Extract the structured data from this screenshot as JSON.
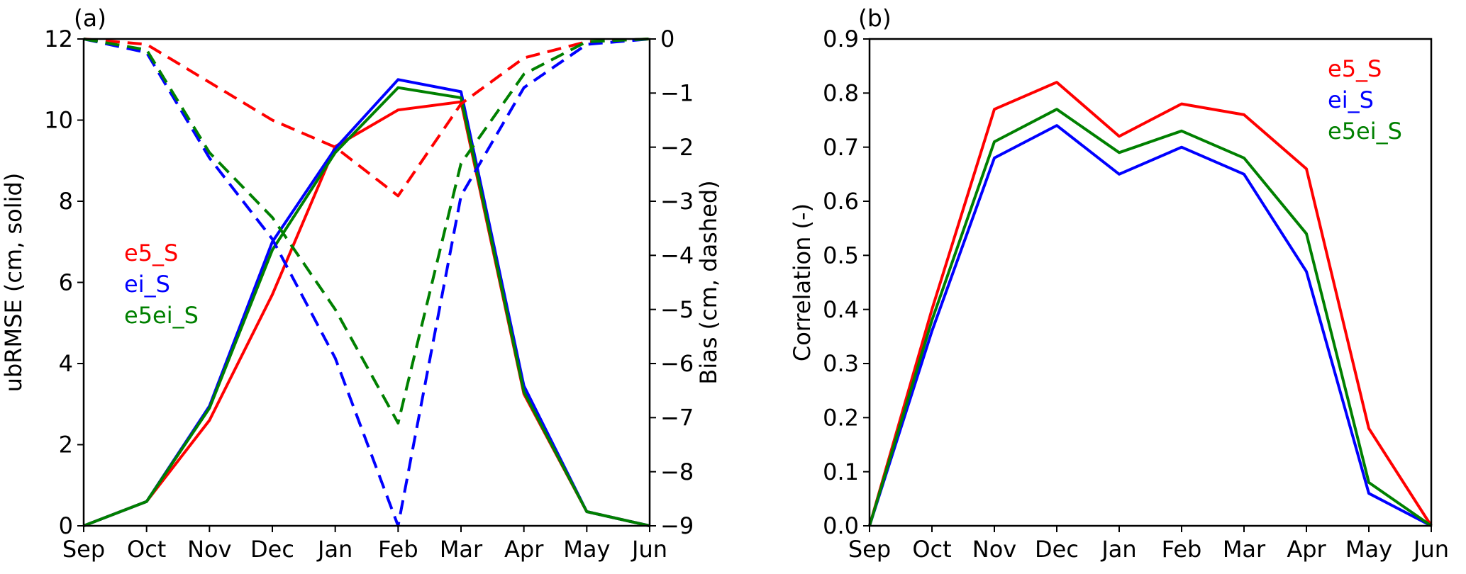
{
  "figure": {
    "background": "#ffffff",
    "text_color": "#000000"
  },
  "chart_data": [
    {
      "id": "a",
      "type": "line",
      "panel_label": "(a)",
      "x_categories": [
        "Sep",
        "Oct",
        "Nov",
        "Dec",
        "Jan",
        "Feb",
        "Mar",
        "Apr",
        "May",
        "Jun"
      ],
      "axes": {
        "left": {
          "label": "ubRMSE (cm, solid)",
          "min": 0,
          "max": 12,
          "tick_values": [
            0,
            2,
            4,
            6,
            8,
            10,
            12
          ],
          "ticks": [
            "0",
            "2",
            "4",
            "6",
            "8",
            "10",
            "12"
          ]
        },
        "right": {
          "label": "Bias (cm, dashed)",
          "min": -9,
          "max": 0,
          "tick_values": [
            0,
            -1,
            -2,
            -3,
            -4,
            -5,
            -6,
            -7,
            -8,
            -9
          ],
          "ticks": [
            "0",
            "−1",
            "−2",
            "−3",
            "−4",
            "−5",
            "−6",
            "−7",
            "−8",
            "−9"
          ]
        }
      },
      "legend": {
        "position": "middle-left",
        "items": [
          {
            "text": "e5_S",
            "color": "#ff0000"
          },
          {
            "text": "ei_S",
            "color": "#0000ff"
          },
          {
            "text": "e5ei_S",
            "color": "#008000"
          }
        ]
      },
      "series": [
        {
          "name": "e5_S-ubRMSE",
          "color": "#ff0000",
          "style": "solid",
          "axis": "left",
          "values": [
            0,
            0.6,
            2.6,
            5.7,
            9.35,
            10.25,
            10.45,
            3.25,
            0.35,
            0
          ]
        },
        {
          "name": "ei_S-ubRMSE",
          "color": "#0000ff",
          "style": "solid",
          "axis": "left",
          "values": [
            0,
            0.6,
            2.95,
            7.0,
            9.3,
            11.0,
            10.7,
            3.45,
            0.35,
            0
          ]
        },
        {
          "name": "e5ei_S-ubRMSE",
          "color": "#008000",
          "style": "solid",
          "axis": "left",
          "values": [
            0,
            0.6,
            2.9,
            6.8,
            9.2,
            10.8,
            10.55,
            3.3,
            0.35,
            0
          ]
        },
        {
          "name": "e5_S-bias",
          "color": "#ff0000",
          "style": "dashed",
          "axis": "right",
          "values": [
            0,
            -0.1,
            -0.8,
            -1.5,
            -2.0,
            -2.9,
            -1.2,
            -0.35,
            -0.05,
            0
          ]
        },
        {
          "name": "ei_S-bias",
          "color": "#0000ff",
          "style": "dashed",
          "axis": "right",
          "values": [
            0,
            -0.25,
            -2.2,
            -3.7,
            -5.9,
            -9.0,
            -2.9,
            -0.9,
            -0.1,
            0
          ]
        },
        {
          "name": "e5ei_S-bias",
          "color": "#008000",
          "style": "dashed",
          "axis": "right",
          "values": [
            0,
            -0.2,
            -2.1,
            -3.3,
            -5.0,
            -7.1,
            -2.3,
            -0.65,
            -0.05,
            0
          ]
        }
      ]
    },
    {
      "id": "b",
      "type": "line",
      "panel_label": "(b)",
      "x_categories": [
        "Sep",
        "Oct",
        "Nov",
        "Dec",
        "Jan",
        "Feb",
        "Mar",
        "Apr",
        "May",
        "Jun"
      ],
      "axes": {
        "left": {
          "label": "Correlation (-)",
          "min": 0,
          "max": 0.9,
          "tick_values": [
            0,
            0.1,
            0.2,
            0.3,
            0.4,
            0.5,
            0.6,
            0.7,
            0.8,
            0.9
          ],
          "ticks": [
            "0.0",
            "0.1",
            "0.2",
            "0.3",
            "0.4",
            "0.5",
            "0.6",
            "0.7",
            "0.8",
            "0.9"
          ]
        }
      },
      "legend": {
        "position": "top-right",
        "items": [
          {
            "text": "e5_S",
            "color": "#ff0000"
          },
          {
            "text": "ei_S",
            "color": "#0000ff"
          },
          {
            "text": "e5ei_S",
            "color": "#008000"
          }
        ]
      },
      "series": [
        {
          "name": "e5_S-correlation",
          "color": "#ff0000",
          "style": "solid",
          "axis": "left",
          "values": [
            0,
            0.4,
            0.77,
            0.82,
            0.72,
            0.78,
            0.76,
            0.66,
            0.18,
            0
          ]
        },
        {
          "name": "ei_S-correlation",
          "color": "#0000ff",
          "style": "solid",
          "axis": "left",
          "values": [
            0,
            0.36,
            0.68,
            0.74,
            0.65,
            0.7,
            0.65,
            0.47,
            0.06,
            0
          ]
        },
        {
          "name": "e5ei_S-correlation",
          "color": "#008000",
          "style": "solid",
          "axis": "left",
          "values": [
            0,
            0.38,
            0.71,
            0.77,
            0.69,
            0.73,
            0.68,
            0.54,
            0.08,
            0
          ]
        }
      ]
    }
  ]
}
